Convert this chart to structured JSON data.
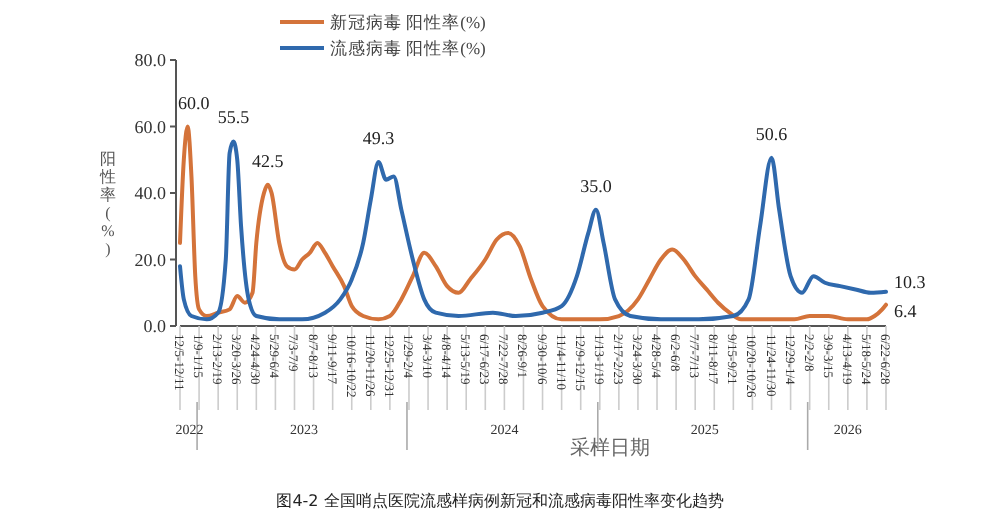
{
  "chart_data": {
    "type": "line",
    "title": "图4-2 全国哨点医院流感样病例新冠和流感病毒阳性率变化趋势",
    "xlabel": "采样日期",
    "ylabel": "阳性率(%)",
    "xlim": [
      "2022-12-05",
      "2026-06-22"
    ],
    "xticks": [
      {
        "value": "2022-12-05",
        "label": "12/5-12/11"
      },
      {
        "value": "2023-01-09",
        "label": "1/9-1/15"
      },
      {
        "value": "2023-02-13",
        "label": "2/13-2/19"
      },
      {
        "value": "2023-03-20",
        "label": "3/20-3/26"
      },
      {
        "value": "2023-04-24",
        "label": "4/24-4/30"
      },
      {
        "value": "2023-05-29",
        "label": "5/29-6/4"
      },
      {
        "value": "2023-07-03",
        "label": "7/3-7/9"
      },
      {
        "value": "2023-08-07",
        "label": "8/7-8/13"
      },
      {
        "value": "2023-09-11",
        "label": "9/11-9/17"
      },
      {
        "value": "2023-10-16",
        "label": "10/16-10/22"
      },
      {
        "value": "2023-11-20",
        "label": "11/20-11/26"
      },
      {
        "value": "2023-12-25",
        "label": "12/25-12/31"
      },
      {
        "value": "2024-01-29",
        "label": "1/29-2/4"
      },
      {
        "value": "2024-03-04",
        "label": "3/4-3/10"
      },
      {
        "value": "2024-04-08",
        "label": "4/8-4/14"
      },
      {
        "value": "2024-05-13",
        "label": "5/13-5/19"
      },
      {
        "value": "2024-06-17",
        "label": "6/17-6/23"
      },
      {
        "value": "2024-07-22",
        "label": "7/22-7/28"
      },
      {
        "value": "2024-08-26",
        "label": "8/26-9/1"
      },
      {
        "value": "2024-09-30",
        "label": "9/30-10/6"
      },
      {
        "value": "2024-11-04",
        "label": "11/4-11/10"
      },
      {
        "value": "2024-12-09",
        "label": "12/9-12/15"
      },
      {
        "value": "2025-01-13",
        "label": "1/13-1/19"
      },
      {
        "value": "2025-02-17",
        "label": "2/17-2/23"
      },
      {
        "value": "2025-03-24",
        "label": "3/24-3/30"
      },
      {
        "value": "2025-04-28",
        "label": "4/28-5/4"
      },
      {
        "value": "2025-06-02",
        "label": "6/2-6/8"
      },
      {
        "value": "2025-07-07",
        "label": "7/7-7/13"
      },
      {
        "value": "2025-08-11",
        "label": "8/11-8/17"
      },
      {
        "value": "2025-09-15",
        "label": "9/15-9/21"
      },
      {
        "value": "2025-10-20",
        "label": "10/20-10/26"
      },
      {
        "value": "2025-11-24",
        "label": "11/24-11/30"
      },
      {
        "value": "2025-12-29",
        "label": "12/29-1/4"
      },
      {
        "value": "2026-02-02",
        "label": "2/2-2/8"
      },
      {
        "value": "2026-03-09",
        "label": "3/9-3/15"
      },
      {
        "value": "2026-04-13",
        "label": "4/13-4/19"
      },
      {
        "value": "2026-05-18",
        "label": "5/18-5/24"
      },
      {
        "value": "2026-06-22",
        "label": "6/22-6/28"
      }
    ],
    "ylim": [
      0,
      80
    ],
    "yticks": [
      {
        "value": 0,
        "label": "0.0"
      },
      {
        "value": 20,
        "label": "20.0"
      },
      {
        "value": 40,
        "label": "40.0"
      },
      {
        "value": 60,
        "label": "60.0"
      },
      {
        "value": 80,
        "label": "80.0"
      }
    ],
    "legend": "top",
    "grid": false,
    "annotations": [
      "2022",
      "2023",
      "2024",
      "2025",
      "2026"
    ],
    "series": [
      {
        "name": "新冠病毒 阳性率(%)",
        "color": "#d4733a",
        "x": [
          "2022-12-05",
          "2022-12-12",
          "2022-12-19",
          "2022-12-26",
          "2023-01-02",
          "2023-01-09",
          "2023-01-23",
          "2023-02-13",
          "2023-03-06",
          "2023-03-20",
          "2023-04-03",
          "2023-04-17",
          "2023-04-24",
          "2023-05-08",
          "2023-05-15",
          "2023-05-22",
          "2023-06-05",
          "2023-06-19",
          "2023-07-03",
          "2023-07-17",
          "2023-07-31",
          "2023-08-14",
          "2023-08-28",
          "2023-09-11",
          "2023-10-02",
          "2023-10-16",
          "2023-11-06",
          "2023-12-04",
          "2023-12-25",
          "2024-01-15",
          "2024-02-05",
          "2024-02-26",
          "2024-03-18",
          "2024-04-08",
          "2024-04-29",
          "2024-05-20",
          "2024-06-17",
          "2024-07-08",
          "2024-07-29",
          "2024-08-19",
          "2024-09-09",
          "2024-09-30",
          "2024-11-04",
          "2024-12-09",
          "2025-01-13",
          "2025-02-17",
          "2025-03-24",
          "2025-04-14",
          "2025-05-05",
          "2025-05-26",
          "2025-06-16",
          "2025-07-07",
          "2025-07-28",
          "2025-08-18",
          "2025-09-08",
          "2025-09-29",
          "2025-11-24",
          "2026-01-05",
          "2026-02-02",
          "2026-03-09",
          "2026-04-13",
          "2026-05-18",
          "2026-06-01",
          "2026-06-15",
          "2026-06-22"
        ],
        "values": [
          25,
          50,
          60.0,
          45,
          15,
          5,
          3,
          4,
          5,
          9,
          7,
          10,
          25,
          40,
          42.5,
          40,
          25,
          18,
          17,
          20,
          22,
          25,
          22,
          18,
          12,
          6,
          3,
          2,
          3,
          8,
          15,
          22,
          18,
          12,
          10,
          14,
          20,
          26,
          28,
          24,
          14,
          6,
          2,
          2,
          2,
          3,
          8,
          14,
          20,
          23,
          20,
          15,
          11,
          7,
          4,
          2,
          2,
          2,
          3,
          3,
          2,
          2,
          3,
          5,
          6.4
        ],
        "value_labels": [
          null,
          null,
          "60.0",
          null,
          null,
          null,
          null,
          null,
          null,
          null,
          null,
          null,
          null,
          null,
          "42.5",
          null,
          null,
          null,
          null,
          null,
          null,
          null,
          null,
          null,
          null,
          null,
          null,
          null,
          null,
          null,
          null,
          null,
          null,
          null,
          null,
          null,
          null,
          null,
          null,
          null,
          null,
          null,
          null,
          null,
          null,
          null,
          null,
          null,
          null,
          null,
          null,
          null,
          null,
          null,
          null,
          null,
          null,
          null,
          null,
          null,
          null,
          null,
          null,
          null,
          "6.4"
        ]
      },
      {
        "name": "流感病毒 阳性率(%)",
        "color": "#2f69ad",
        "x": [
          "2022-12-05",
          "2022-12-12",
          "2022-12-26",
          "2023-01-23",
          "2023-02-13",
          "2023-02-27",
          "2023-03-06",
          "2023-03-13",
          "2023-03-20",
          "2023-03-27",
          "2023-04-10",
          "2023-04-24",
          "2023-06-05",
          "2023-07-17",
          "2023-08-28",
          "2023-09-25",
          "2023-10-16",
          "2023-11-06",
          "2023-11-20",
          "2023-12-04",
          "2023-12-18",
          "2024-01-01",
          "2024-01-15",
          "2024-02-05",
          "2024-02-26",
          "2024-03-18",
          "2024-04-29",
          "2024-07-01",
          "2024-08-12",
          "2024-09-30",
          "2024-11-04",
          "2024-12-02",
          "2024-12-23",
          "2025-01-06",
          "2025-01-20",
          "2025-02-10",
          "2025-03-10",
          "2025-05-05",
          "2025-07-14",
          "2025-09-15",
          "2025-10-13",
          "2025-11-03",
          "2025-11-24",
          "2025-12-08",
          "2025-12-29",
          "2026-01-19",
          "2026-02-09",
          "2026-03-02",
          "2026-03-30",
          "2026-04-27",
          "2026-05-25",
          "2026-06-22"
        ],
        "values": [
          18,
          8,
          3,
          2,
          4,
          20,
          52,
          55.5,
          50,
          30,
          8,
          3,
          2,
          2,
          4,
          8,
          14,
          25,
          38,
          49.3,
          44,
          45,
          35,
          20,
          8,
          4,
          3,
          4,
          3,
          4,
          6,
          15,
          28,
          35.0,
          25,
          8,
          3,
          2,
          2,
          3,
          8,
          30,
          50.6,
          35,
          15,
          10,
          15,
          13,
          12,
          11,
          10,
          10.3
        ],
        "value_labels": [
          null,
          null,
          null,
          null,
          null,
          null,
          null,
          "55.5",
          null,
          null,
          null,
          null,
          null,
          null,
          null,
          null,
          null,
          null,
          null,
          "49.3",
          null,
          null,
          null,
          null,
          null,
          null,
          null,
          null,
          null,
          null,
          null,
          null,
          null,
          "35.0",
          null,
          null,
          null,
          null,
          null,
          null,
          null,
          null,
          "50.6",
          null,
          null,
          null,
          null,
          null,
          null,
          null,
          null,
          "10.3"
        ]
      }
    ]
  }
}
